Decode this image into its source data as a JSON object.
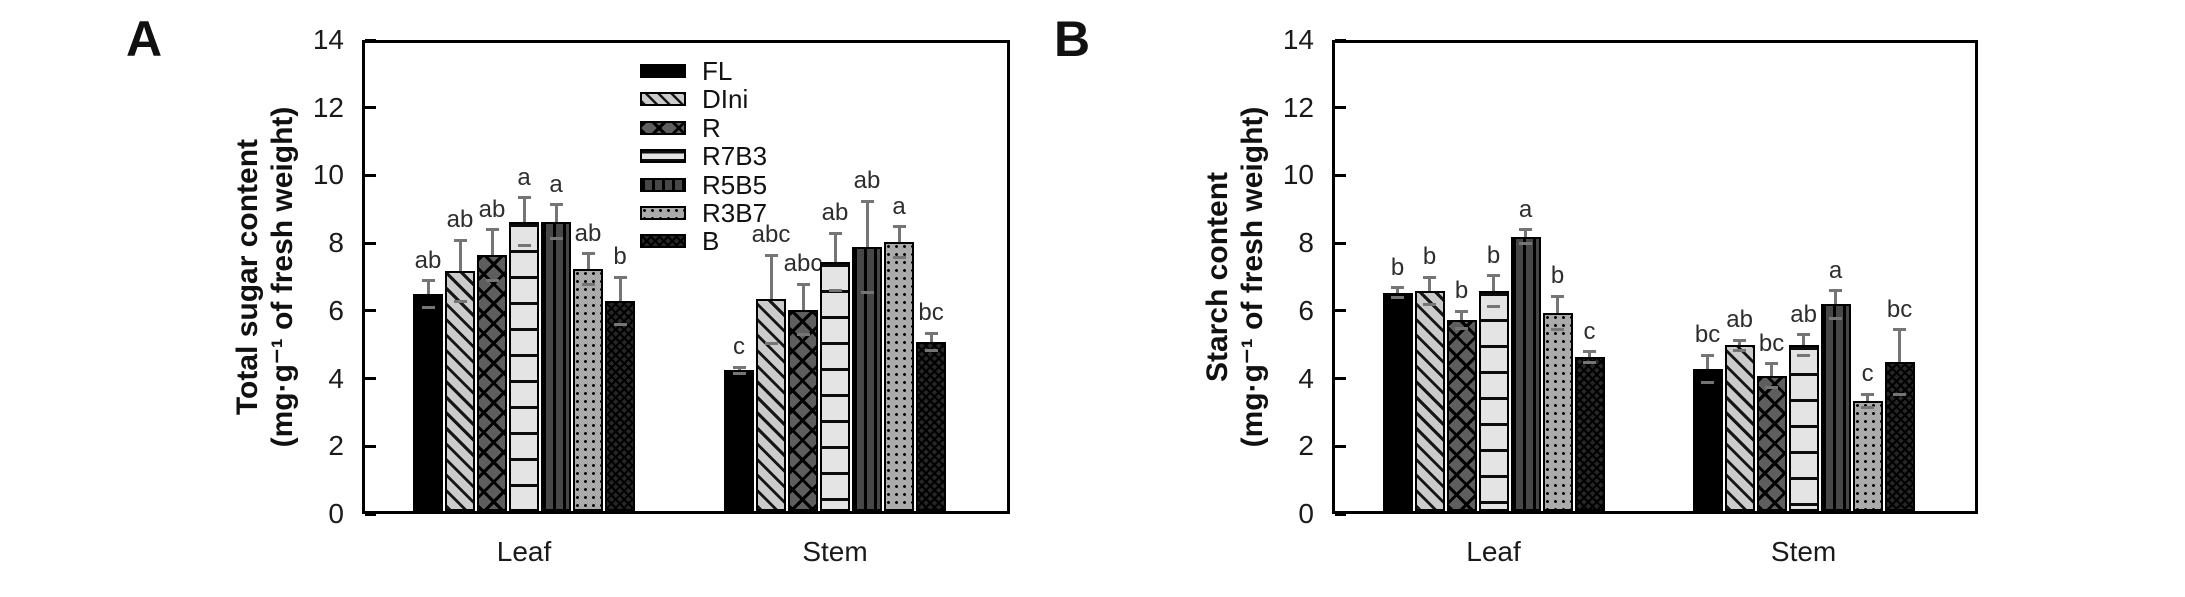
{
  "figure": {
    "background": "#ffffff",
    "panels": [
      {
        "label": "A",
        "y_axis_title_line1": "Total sugar content",
        "y_axis_title_line2": "(mg·g⁻¹ of fresh weight)"
      },
      {
        "label": "B",
        "y_axis_title_line1": "Starch content",
        "y_axis_title_line2": "(mg·g⁻¹ of fresh weight)"
      }
    ],
    "colors": {
      "axis": "#000000",
      "bar_outline": "#000000",
      "error_bar": "#757575",
      "sig_letter": "#2e2e2e",
      "text": "#1a1a1a"
    }
  },
  "chart_data": [
    {
      "type": "bar",
      "panel": "A",
      "title": "",
      "ylabel": "Total sugar content (mg·g⁻¹ of fresh weight)",
      "xlabel": "",
      "categories": [
        "Leaf",
        "Stem"
      ],
      "ylim": [
        0,
        14
      ],
      "yticks": [
        0,
        2,
        4,
        6,
        8,
        10,
        12,
        14
      ],
      "grid": false,
      "legend": {
        "visible": true,
        "position": "upper-right-inside"
      },
      "series": [
        {
          "name": "FL",
          "pattern": "solid",
          "values": [
            6.4,
            4.15
          ],
          "errors": [
            0.4,
            0.1
          ],
          "sig_letters": [
            "ab",
            "c"
          ]
        },
        {
          "name": "DIni",
          "pattern": "diagonal-hatch",
          "values": [
            7.1,
            6.25
          ],
          "errors": [
            0.9,
            1.3
          ],
          "sig_letters": [
            "ab",
            "abc"
          ]
        },
        {
          "name": "R",
          "pattern": "diamond-crosshatch",
          "values": [
            7.55,
            5.95
          ],
          "errors": [
            0.75,
            0.75
          ],
          "sig_letters": [
            "ab",
            "abc"
          ]
        },
        {
          "name": "R7B3",
          "pattern": "horizontal-lines",
          "values": [
            8.55,
            7.35
          ],
          "errors": [
            0.7,
            0.85
          ],
          "sig_letters": [
            "a",
            "ab"
          ]
        },
        {
          "name": "R5B5",
          "pattern": "vertical-lines",
          "values": [
            8.55,
            7.8
          ],
          "errors": [
            0.5,
            1.35
          ],
          "sig_letters": [
            "a",
            "ab"
          ]
        },
        {
          "name": "R3B7",
          "pattern": "dots",
          "values": [
            7.15,
            7.95
          ],
          "errors": [
            0.45,
            0.45
          ],
          "sig_letters": [
            "ab",
            "a"
          ]
        },
        {
          "name": "B",
          "pattern": "fine-crosshatch",
          "values": [
            6.2,
            5.0
          ],
          "errors": [
            0.7,
            0.25
          ],
          "sig_letters": [
            "b",
            "bc"
          ]
        }
      ]
    },
    {
      "type": "bar",
      "panel": "B",
      "title": "",
      "ylabel": "Starch content (mg·g⁻¹ of fresh weight)",
      "xlabel": "",
      "categories": [
        "Leaf",
        "Stem"
      ],
      "ylim": [
        0,
        14
      ],
      "yticks": [
        0,
        2,
        4,
        6,
        8,
        10,
        12,
        14
      ],
      "grid": false,
      "legend": {
        "visible": false,
        "position": "none"
      },
      "series": [
        {
          "name": "FL",
          "pattern": "solid",
          "values": [
            6.45,
            4.2
          ],
          "errors": [
            0.15,
            0.4
          ],
          "sig_letters": [
            "b",
            "bc"
          ]
        },
        {
          "name": "DIni",
          "pattern": "diagonal-hatch",
          "values": [
            6.5,
            4.9
          ],
          "errors": [
            0.4,
            0.15
          ],
          "sig_letters": [
            "b",
            "ab"
          ]
        },
        {
          "name": "R",
          "pattern": "diamond-crosshatch",
          "values": [
            5.65,
            4.0
          ],
          "errors": [
            0.25,
            0.35
          ],
          "sig_letters": [
            "b",
            "bc"
          ]
        },
        {
          "name": "R7B3",
          "pattern": "horizontal-lines",
          "values": [
            6.5,
            4.9
          ],
          "errors": [
            0.45,
            0.3
          ],
          "sig_letters": [
            "b",
            "ab"
          ]
        },
        {
          "name": "R5B5",
          "pattern": "vertical-lines",
          "values": [
            8.1,
            6.1
          ],
          "errors": [
            0.2,
            0.4
          ],
          "sig_letters": [
            "a",
            "a"
          ]
        },
        {
          "name": "R3B7",
          "pattern": "dots",
          "values": [
            5.85,
            3.25
          ],
          "errors": [
            0.5,
            0.2
          ],
          "sig_letters": [
            "b",
            "c"
          ]
        },
        {
          "name": "B",
          "pattern": "fine-crosshatch",
          "values": [
            4.55,
            4.4
          ],
          "errors": [
            0.15,
            0.95
          ],
          "sig_letters": [
            "c",
            "bc"
          ]
        }
      ]
    }
  ]
}
